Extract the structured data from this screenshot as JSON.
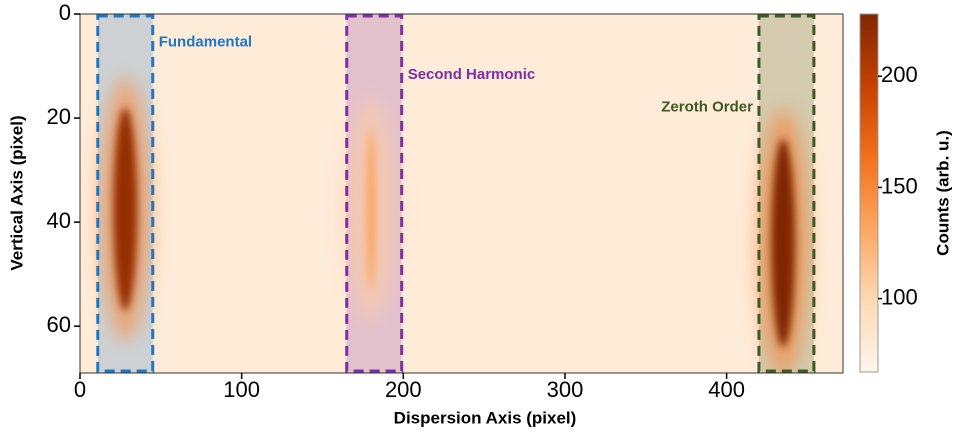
{
  "chart_data": {
    "type": "heatmap",
    "xlabel": "Dispersion Axis (pixel)",
    "ylabel": "Vertical Axis (pixel)",
    "xlim": [
      0,
      472
    ],
    "xticks": [
      0,
      100,
      200,
      300,
      400
    ],
    "ylim": [
      0,
      69
    ],
    "yticks": [
      0,
      20,
      40,
      60
    ],
    "y_inverted": true,
    "colorbar_label": "Counts (arb. u.)",
    "clim": [
      67,
      228
    ],
    "cticks": [
      100,
      150,
      200
    ],
    "colormap": [
      "#fff5eb",
      "#fdd9b4",
      "#fda762",
      "#f3701b",
      "#c54102",
      "#7f2704"
    ],
    "background": 78,
    "regions": [
      {
        "label": "Fundamental",
        "x": [
          11,
          45
        ],
        "color": "#1f77c4"
      },
      {
        "label": "Second Harmonic",
        "x": [
          165,
          199
        ],
        "color": "#7a2fa6"
      },
      {
        "label": "Zeroth Order",
        "x": [
          420,
          454
        ],
        "color": "#3e5a24"
      }
    ],
    "features": [
      {
        "x": 28,
        "y": [
          18,
          57
        ],
        "peak": 218
      },
      {
        "x": 180,
        "y": [
          22,
          53
        ],
        "peak": 135
      },
      {
        "x": 435,
        "y": [
          24,
          64
        ],
        "peak": 228
      }
    ]
  }
}
